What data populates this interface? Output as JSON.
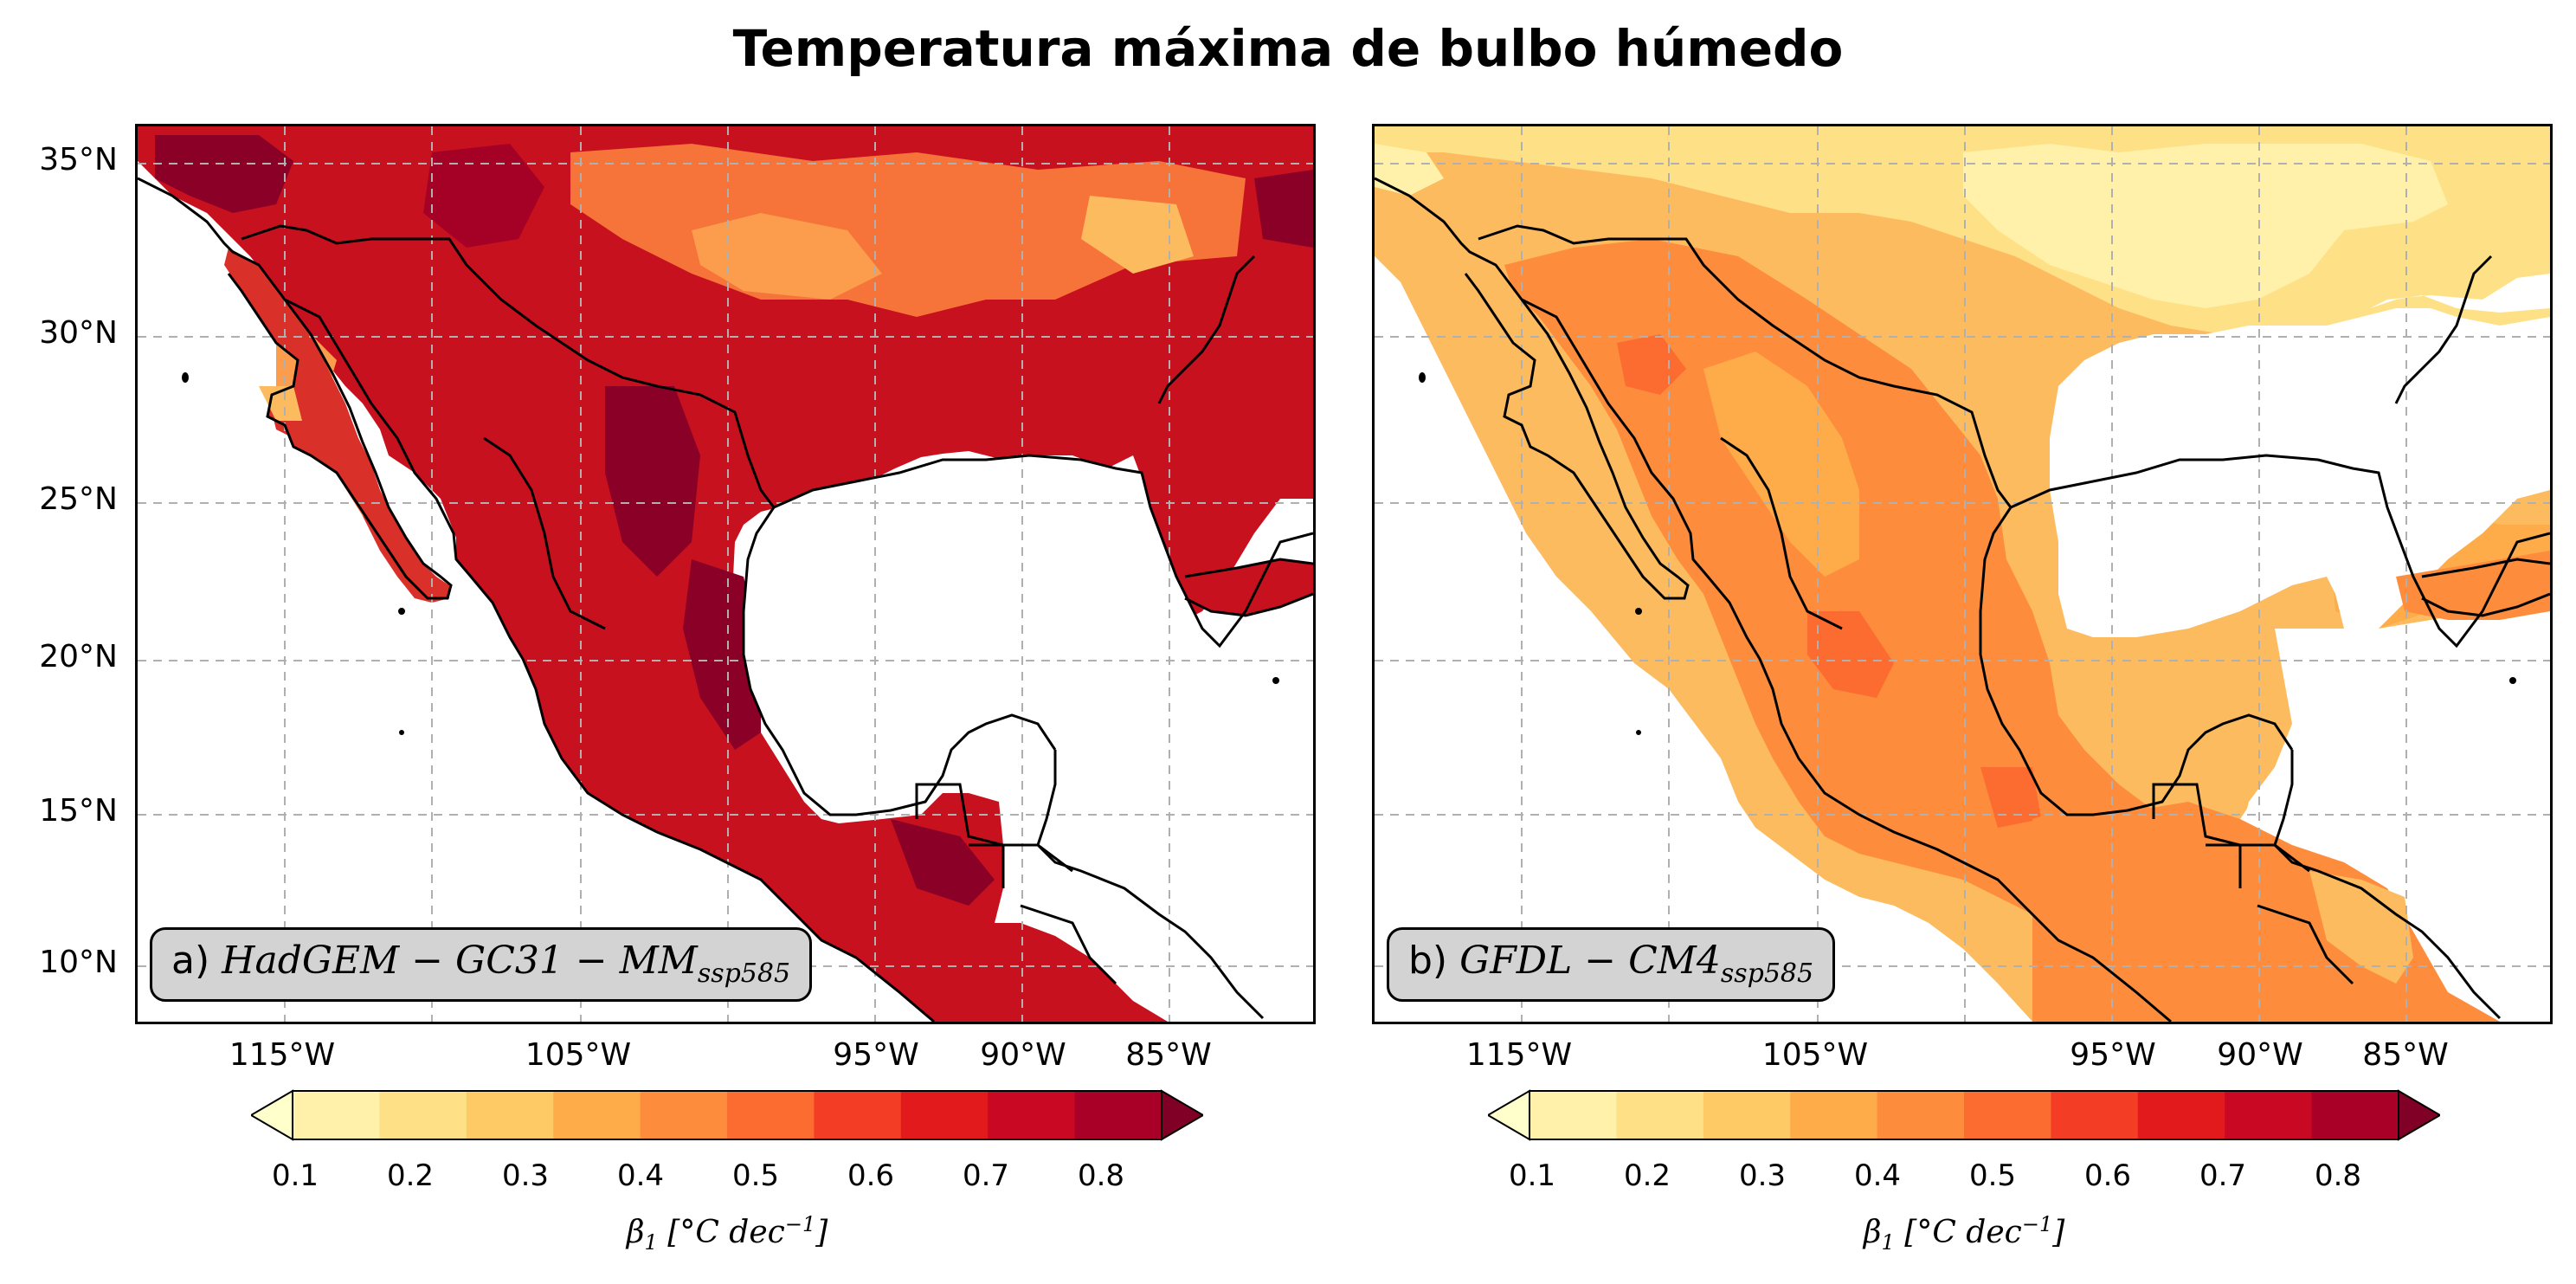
{
  "title": "Temperatura máxima de bulbo húmedo",
  "panels": [
    {
      "prefix": "a) ",
      "model": "HadGEM − GC31 − MM",
      "scenario": "ssp585"
    },
    {
      "prefix": "b) ",
      "model": "GFDL − CM4",
      "scenario": "ssp585"
    }
  ],
  "y_ticks": [
    "35°N",
    "30°N",
    "25°N",
    "20°N",
    "15°N",
    "10°N"
  ],
  "x_ticks": [
    "115°W",
    "105°W",
    "95°W",
    "90°W",
    "85°W"
  ],
  "colorbar": {
    "ticks": [
      "0.1",
      "0.2",
      "0.3",
      "0.4",
      "0.5",
      "0.6",
      "0.7",
      "0.8"
    ],
    "label_symbol": "β",
    "label_sub": "1",
    "label_unit": " [°C dec",
    "label_sup": "−1",
    "label_end": "]",
    "colors": [
      "#ffffcc",
      "#fff1a9",
      "#fee187",
      "#feca66",
      "#feab49",
      "#fd8c3c",
      "#fc6b2f",
      "#f43d25",
      "#e31a1c",
      "#c90823",
      "#a80026",
      "#800026"
    ],
    "extend": "both"
  },
  "colors": {
    "land": "#c8111e",
    "land_b": "#f8a04a",
    "grid": "#b0b0b0",
    "label_box": "#d3d3d3"
  }
}
